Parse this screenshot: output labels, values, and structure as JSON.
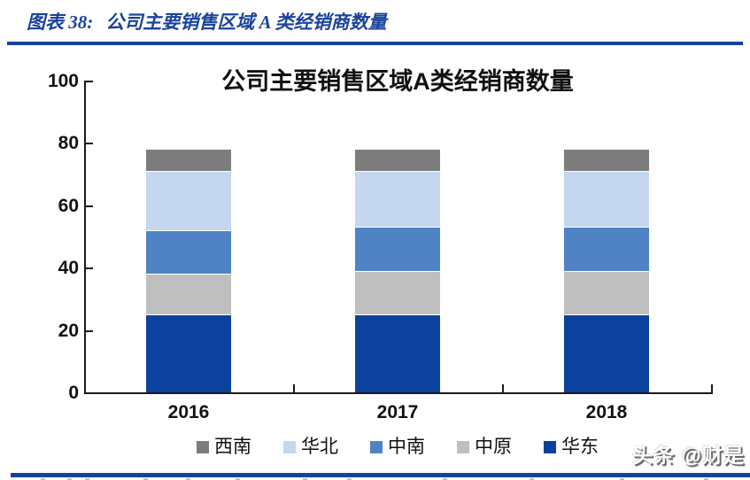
{
  "header": {
    "figure_label": "图表 38:",
    "figure_title": "公司主要销售区域 A 类经销商数量"
  },
  "watermark": "头条 @财是",
  "colors": {
    "header_blue": "#1a449c",
    "rule_blue": "#15439b",
    "axis_black": "#1a1a1a"
  },
  "chart_data": {
    "type": "bar",
    "subtype": "stacked-vertical",
    "title": "公司主要销售区域A类经销商数量",
    "categories": [
      "2016",
      "2017",
      "2018"
    ],
    "series": [
      {
        "name": "西南",
        "color": "#7c7c7c",
        "values": [
          7,
          7,
          7
        ]
      },
      {
        "name": "华北",
        "color": "#c5d6ef",
        "values": [
          19,
          18,
          18
        ]
      },
      {
        "name": "中南",
        "color": "#5083c6",
        "values": [
          14,
          14,
          14
        ]
      },
      {
        "name": "中原",
        "color": "#bfbfbf",
        "values": [
          13,
          14,
          14
        ]
      },
      {
        "name": "华东",
        "color": "#0c429e",
        "values": [
          25,
          25,
          25
        ]
      }
    ],
    "stack_order_bottom_to_top": [
      "华东",
      "中原",
      "中南",
      "华北",
      "西南"
    ],
    "totals": [
      78,
      78,
      78
    ],
    "xlabel": "",
    "ylabel": "",
    "ylim": [
      0,
      100
    ],
    "yticks": [
      0,
      20,
      40,
      60,
      80,
      100
    ],
    "grid": false,
    "legend_position": "bottom"
  }
}
